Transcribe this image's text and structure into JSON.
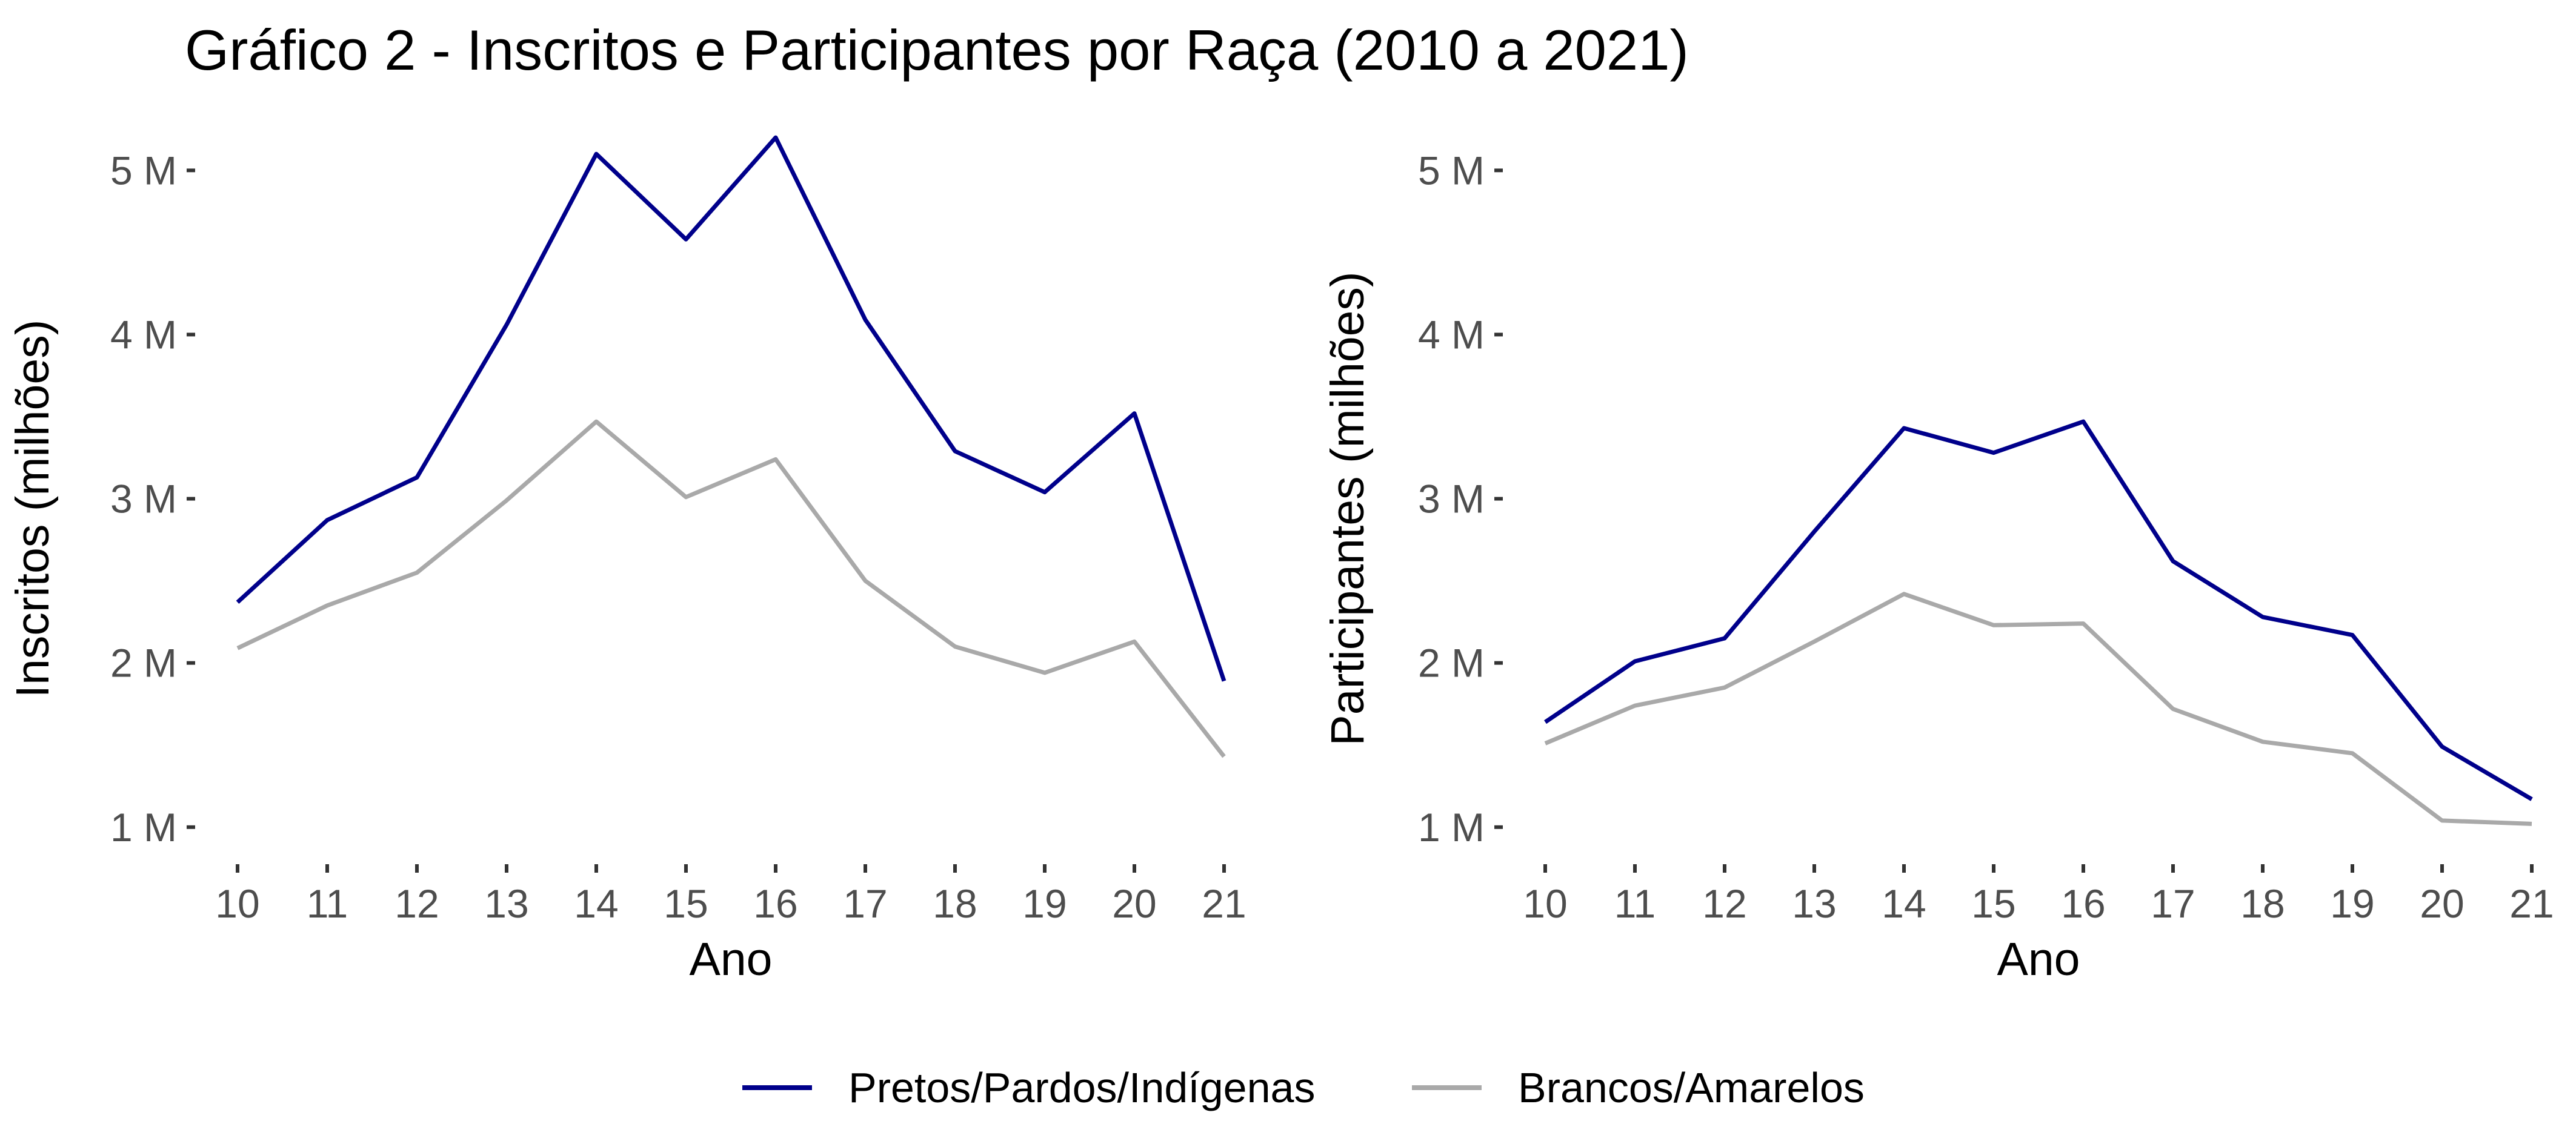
{
  "chart_data": {
    "title": "Gráfico 2 - Inscritos e Participantes por Raça (2010 a 2021)",
    "colors": {
      "Pretos/Pardos/Indígenas": "#00008b",
      "Brancos/Amarelos": "#a9a9a9"
    },
    "legend": {
      "position": "bottom",
      "entries": [
        "Pretos/Pardos/Indígenas",
        "Brancos/Amarelos"
      ]
    },
    "panels": [
      {
        "type": "line",
        "title": "",
        "xlabel": "Ano",
        "ylabel": "Inscritos (milhões)",
        "x": [
          "10",
          "11",
          "12",
          "13",
          "14",
          "15",
          "16",
          "17",
          "18",
          "19",
          "20",
          "21"
        ],
        "ylim": [
          0.8,
          5.3
        ],
        "yticks": [
          1,
          2,
          3,
          4,
          5
        ],
        "ytick_labels": [
          "1 M",
          "2 M",
          "3 M",
          "4 M",
          "5 M"
        ],
        "grid": false,
        "series": [
          {
            "name": "Pretos/Pardos/Indígenas",
            "values": [
              2.37,
              2.87,
              3.13,
              4.06,
              5.1,
              4.58,
              5.2,
              4.09,
              3.29,
              3.04,
              3.52,
              1.89
            ]
          },
          {
            "name": "Brancos/Amarelos",
            "values": [
              2.09,
              2.35,
              2.55,
              2.99,
              3.47,
              3.01,
              3.24,
              2.5,
              2.1,
              1.94,
              2.13,
              1.43
            ]
          }
        ]
      },
      {
        "type": "line",
        "title": "",
        "xlabel": "Ano",
        "ylabel": "Participantes (milhões)",
        "x": [
          "10",
          "11",
          "12",
          "13",
          "14",
          "15",
          "16",
          "17",
          "18",
          "19",
          "20",
          "21"
        ],
        "ylim": [
          0.8,
          5.3
        ],
        "yticks": [
          1,
          2,
          3,
          4,
          5
        ],
        "ytick_labels": [
          "1 M",
          "2 M",
          "3 M",
          "4 M",
          "5 M"
        ],
        "grid": false,
        "series": [
          {
            "name": "Pretos/Pardos/Indígenas",
            "values": [
              1.64,
              2.01,
              2.15,
              2.8,
              3.43,
              3.28,
              3.47,
              2.62,
              2.28,
              2.17,
              1.49,
              1.17
            ]
          },
          {
            "name": "Brancos/Amarelos",
            "values": [
              1.51,
              1.74,
              1.85,
              2.13,
              2.42,
              2.23,
              2.24,
              1.72,
              1.52,
              1.45,
              1.04,
              1.02
            ]
          }
        ]
      }
    ]
  }
}
